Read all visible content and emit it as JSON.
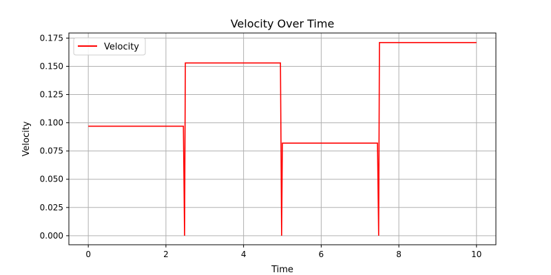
{
  "chart_data": {
    "type": "line",
    "title": "Velocity Over Time",
    "xlabel": "Time",
    "ylabel": "Velocity",
    "xlim": [
      -0.5,
      10.5
    ],
    "ylim": [
      -0.008,
      0.1795
    ],
    "xticks": [
      0,
      2,
      4,
      6,
      8,
      10
    ],
    "xtick_labels": [
      "0",
      "2",
      "4",
      "6",
      "8",
      "10"
    ],
    "yticks": [
      0.0,
      0.025,
      0.05,
      0.075,
      0.1,
      0.125,
      0.15,
      0.175
    ],
    "ytick_labels": [
      "0.000",
      "0.025",
      "0.050",
      "0.075",
      "0.100",
      "0.125",
      "0.150",
      "0.175"
    ],
    "grid": true,
    "legend_position": "upper-left",
    "colors": {
      "series": "#ff0000",
      "grid": "#b0b0b0",
      "axes": "#000000"
    },
    "series": [
      {
        "name": "Velocity",
        "color": "#ff0000",
        "x": [
          0,
          2.45,
          2.48,
          2.5,
          4.95,
          4.98,
          5.0,
          7.45,
          7.48,
          7.5,
          10
        ],
        "y": [
          0.097,
          0.097,
          0.0,
          0.153,
          0.153,
          0.0,
          0.082,
          0.082,
          0.0,
          0.171,
          0.171
        ]
      }
    ]
  }
}
